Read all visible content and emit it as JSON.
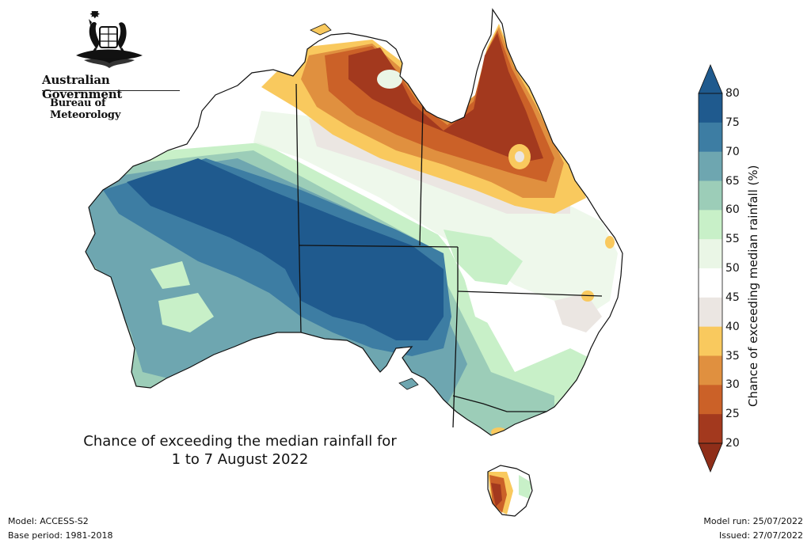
{
  "header": {
    "organisation": "Australian Government",
    "agency": "Bureau of Meteorology"
  },
  "map": {
    "title_line1": "Chance of exceeding the median rainfall for",
    "title_line2": "1 to 7 August 2022"
  },
  "legend": {
    "title": "Chance of exceeding median rainfall (%)",
    "ticks": [
      "80",
      "75",
      "70",
      "65",
      "60",
      "55",
      "50",
      "45",
      "40",
      "35",
      "30",
      "25",
      "20"
    ],
    "colors": [
      "#1f5a8e",
      "#3d7da3",
      "#6ea6b0",
      "#9ccdb8",
      "#c8f0c8",
      "#eaf6e6",
      "#ffffff",
      "#ebe6e2",
      "#f9c95e",
      "#e0903f",
      "#cb6128",
      "#a3391e"
    ],
    "upper_arrow_color": "#1f5a8e",
    "lower_arrow_color": "#8f2e19"
  },
  "footer": {
    "model": "Model: ACCESS-S2",
    "base_period": "Base period: 1981-2018",
    "model_run": "Model run: 25/07/2022",
    "issued": "Issued: 27/07/2022"
  }
}
